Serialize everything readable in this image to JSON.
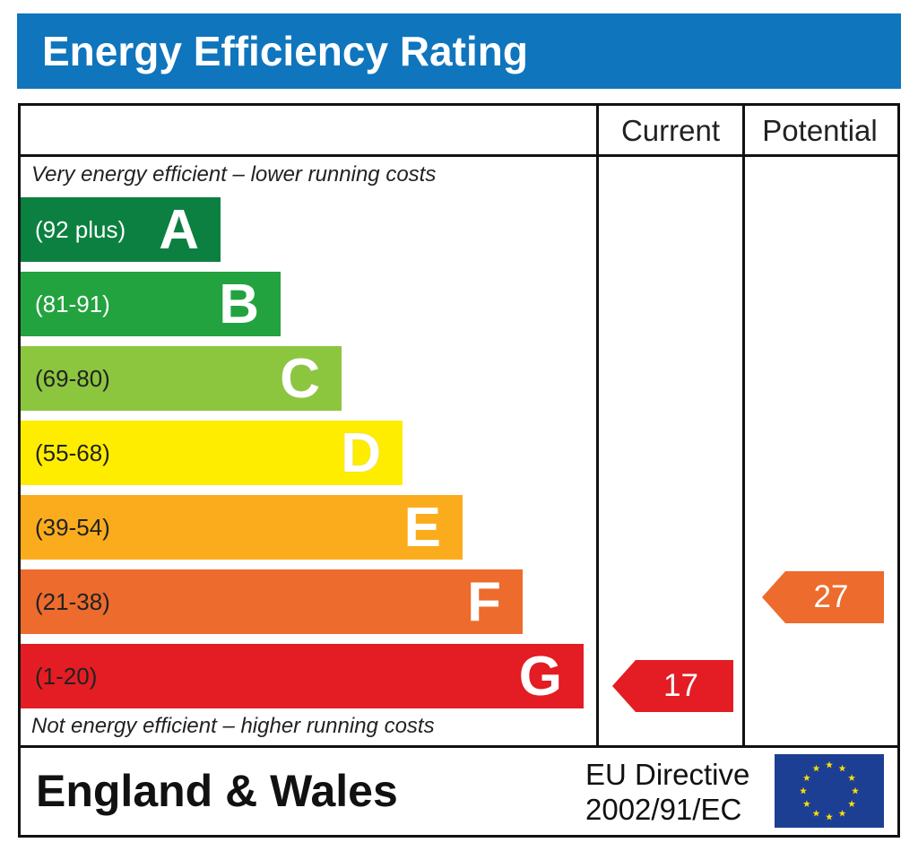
{
  "header": {
    "title": "Energy Efficiency Rating"
  },
  "columns": {
    "current": "Current",
    "potential": "Potential"
  },
  "captions": {
    "top": "Very energy efficient – lower running costs",
    "bottom": "Not energy efficient – higher running costs"
  },
  "chart_data": {
    "type": "bar",
    "title": "Energy Efficiency Rating",
    "categories": [
      "A",
      "B",
      "C",
      "D",
      "E",
      "F",
      "G"
    ],
    "bands": [
      {
        "letter": "A",
        "range": "(92 plus)",
        "color": "#0c8040",
        "text_color": "#ffffff"
      },
      {
        "letter": "B",
        "range": "(81-91)",
        "color": "#22a33f",
        "text_color": "#ffffff"
      },
      {
        "letter": "C",
        "range": "(69-80)",
        "color": "#8cc63f",
        "text_color": "#222222"
      },
      {
        "letter": "D",
        "range": "(55-68)",
        "color": "#ffed00",
        "text_color": "#222222"
      },
      {
        "letter": "E",
        "range": "(39-54)",
        "color": "#fbac1d",
        "text_color": "#222222"
      },
      {
        "letter": "F",
        "range": "(21-38)",
        "color": "#ec6b2d",
        "text_color": "#222222"
      },
      {
        "letter": "G",
        "range": "(1-20)",
        "color": "#e31d23",
        "text_color": "#222222"
      }
    ],
    "series": [
      {
        "name": "Current",
        "value": 17,
        "band": "G",
        "color": "#e31d23"
      },
      {
        "name": "Potential",
        "value": 27,
        "band": "F",
        "color": "#ec6b2d"
      }
    ]
  },
  "footer": {
    "region": "England & Wales",
    "directive_line1": "EU Directive",
    "directive_line2": "2002/91/EC",
    "flag_icon": "eu-flag-icon",
    "flag_color": "#1c3f94",
    "star_color": "#ffdd00"
  }
}
